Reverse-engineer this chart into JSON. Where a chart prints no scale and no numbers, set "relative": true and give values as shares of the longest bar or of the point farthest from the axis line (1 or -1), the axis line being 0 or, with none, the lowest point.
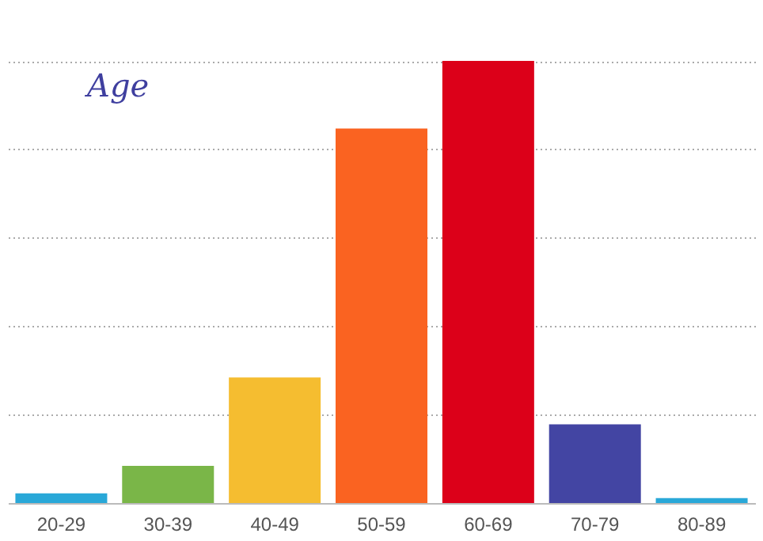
{
  "chart_data": {
    "type": "bar",
    "title": "Age",
    "relative": true,
    "grid": "y",
    "categories": [
      "20-29",
      "30-39",
      "40-49",
      "50-59",
      "60-69",
      "70-79",
      "80-89"
    ],
    "values": [
      0.022,
      0.084,
      0.284,
      0.847,
      1,
      0.178,
      0.011
    ],
    "colors": [
      "#29a8d8",
      "#7ab648",
      "#f5bd30",
      "#fa6321",
      "#dc0019",
      "#4345a3",
      "#29a8d8"
    ]
  }
}
